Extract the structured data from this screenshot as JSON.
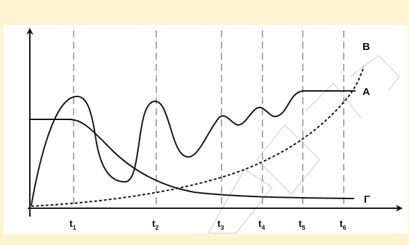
{
  "chart_data": {
    "type": "line",
    "title": "",
    "xlabel": "",
    "ylabel": "",
    "time_marks": [
      {
        "base": "t",
        "sub": "1"
      },
      {
        "base": "t",
        "sub": "2"
      },
      {
        "base": "t",
        "sub": "3"
      },
      {
        "base": "t",
        "sub": "4"
      },
      {
        "base": "t",
        "sub": "5"
      },
      {
        "base": "t",
        "sub": "6"
      }
    ],
    "series": [
      {
        "name": "A",
        "description_shape": "rise-then-damped-oscillation-to-plateau"
      },
      {
        "name": "B",
        "description_shape": "exponential-growth-dashed"
      },
      {
        "name": "Γ",
        "description_shape": "plateau-then-decay"
      }
    ],
    "grid": "dashed-vertical-at-marks",
    "colors": {
      "frame": "#fef4d2",
      "background": "#ffffff",
      "curve": "#111111",
      "gridline": "#a8a8a8"
    }
  }
}
